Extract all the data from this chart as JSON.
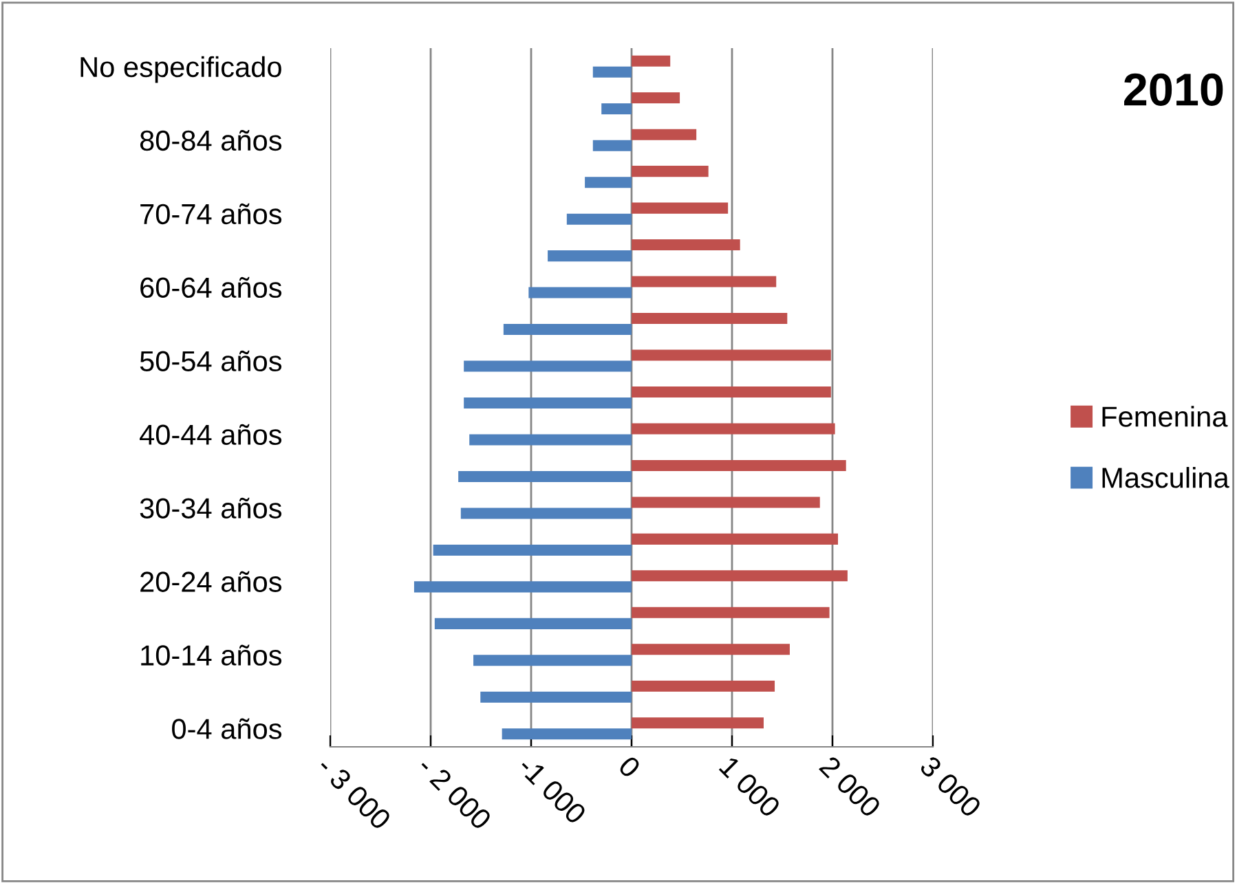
{
  "chart_data": {
    "type": "bar",
    "orientation": "horizontal",
    "title": "2010",
    "categories": [
      "No especificado",
      null,
      "80-84 años",
      null,
      "70-74 años",
      null,
      "60-64 años",
      null,
      "50-54 años",
      null,
      "40-44 años",
      null,
      "30-34 años",
      null,
      "20-24 años",
      null,
      "10-14 años",
      null,
      "0-4 años"
    ],
    "series": [
      {
        "name": "Femenina",
        "color": "#c0504d",
        "values": [
          385,
          480,
          645,
          765,
          960,
          1080,
          1440,
          1550,
          1985,
          1985,
          2025,
          2135,
          1875,
          2055,
          2150,
          1970,
          1575,
          1425,
          1315
        ]
      },
      {
        "name": "Masculina",
        "color": "#4f81bd",
        "values": [
          -385,
          -300,
          -385,
          -465,
          -645,
          -835,
          -1025,
          -1275,
          -1670,
          -1670,
          -1615,
          -1725,
          -1700,
          -1975,
          -2165,
          -1960,
          -1575,
          -1505,
          -1290
        ]
      }
    ],
    "xlim": [
      -3000,
      3000
    ],
    "xticks": [
      {
        "value": -3000,
        "label": "- 3 000"
      },
      {
        "value": -2000,
        "label": "- 2 000"
      },
      {
        "value": -1000,
        "label": "-1 000"
      },
      0,
      {
        "value": 1000,
        "label": "1 000"
      },
      {
        "value": 2000,
        "label": "2 000"
      },
      {
        "value": 3000,
        "label": "3 000"
      }
    ],
    "grid": "x",
    "legend": "right"
  }
}
